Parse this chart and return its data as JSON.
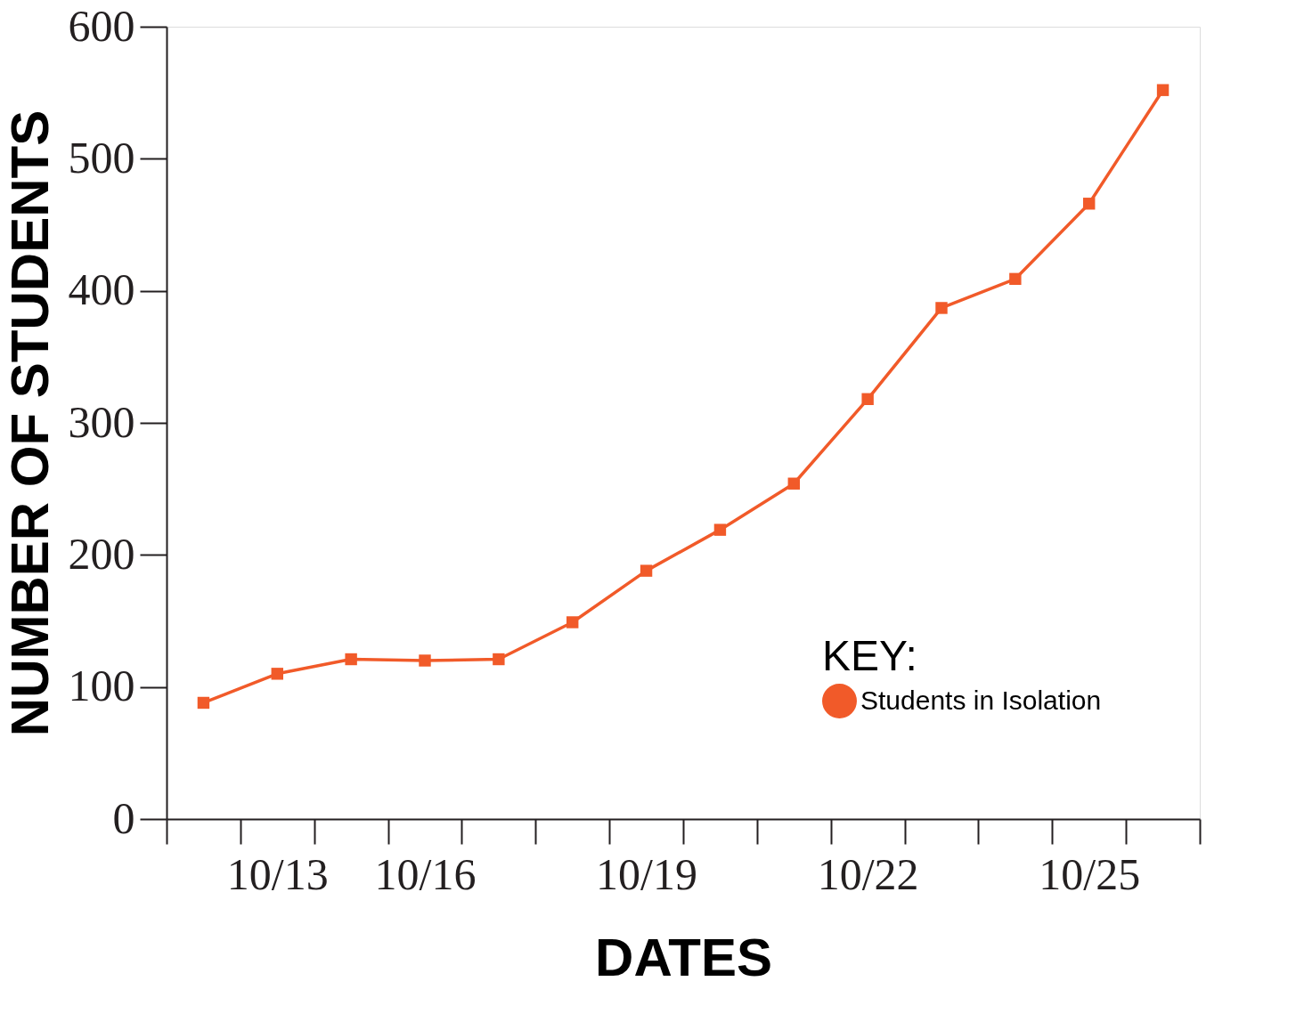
{
  "chart_data": {
    "type": "line",
    "xlabel": "DATES",
    "ylabel": "NUMBER OF STUDENTS",
    "legend_title": "KEY:",
    "legend": "bottom right",
    "marker": "square",
    "line_style": "solid",
    "grid": false,
    "categories": [
      null,
      "10/13",
      null,
      "10/16",
      null,
      null,
      "10/19",
      null,
      null,
      "10/22",
      null,
      null,
      "10/25",
      null
    ],
    "series": [
      {
        "name": "Students in Isolation",
        "color": "#f15a29",
        "values": [
          88,
          110,
          121,
          120,
          121,
          149,
          188,
          219,
          254,
          318,
          387,
          409,
          466,
          552
        ]
      }
    ],
    "ylim": [
      0,
      600
    ],
    "yticks": [
      0,
      100,
      200,
      300,
      400,
      500,
      600
    ]
  }
}
